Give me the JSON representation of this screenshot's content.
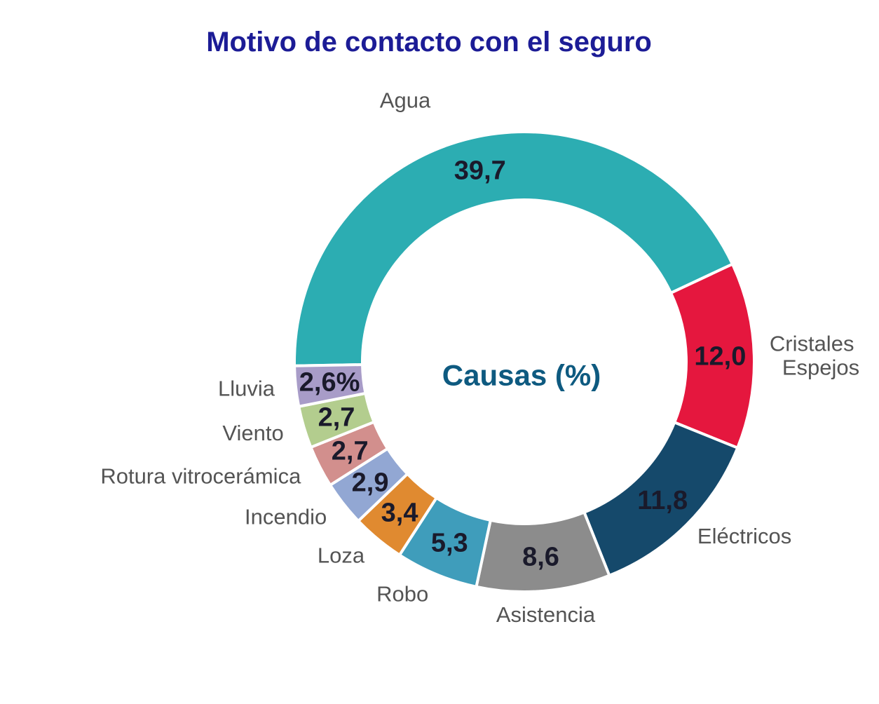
{
  "chart_data": {
    "type": "pie",
    "variant": "donut",
    "title": "Motivo de contacto con el seguro",
    "center_label": "Causas (%)",
    "unit": "%",
    "start_angle_deg": 181,
    "direction": "clockwise",
    "legend": "none",
    "slices": [
      {
        "label": "Agua",
        "value": 39.7,
        "value_label": "39,7",
        "color": "#2cadb2"
      },
      {
        "label": "Cristales Espejos",
        "value": 12.0,
        "value_label": "12,0",
        "color": "#e5173e",
        "label_lines": [
          "Cristales",
          "Espejos"
        ]
      },
      {
        "label": "Eléctricos",
        "value": 11.8,
        "value_label": "11,8",
        "color": "#15496b"
      },
      {
        "label": "Asistencia",
        "value": 8.6,
        "value_label": "8,6",
        "color": "#8c8c8c"
      },
      {
        "label": "Robo",
        "value": 5.3,
        "value_label": "5,3",
        "color": "#3f9dbb"
      },
      {
        "label": "Loza",
        "value": 3.4,
        "value_label": "3,4",
        "color": "#e08a30"
      },
      {
        "label": "Incendio",
        "value": 2.9,
        "value_label": "2,9",
        "color": "#92a7d3"
      },
      {
        "label": "Rotura vitrocerámica",
        "value": 2.7,
        "value_label": "2,7",
        "color": "#d28f8d"
      },
      {
        "label": "Viento",
        "value": 2.7,
        "value_label": "2,7",
        "color": "#b3cd8e"
      },
      {
        "label": "Lluvia",
        "value": 2.6,
        "value_label": "2,6%",
        "color": "#a89cc8"
      }
    ],
    "colors": {
      "title": "#1c1c96",
      "center_label": "#0e5a80",
      "category_labels": "#545454",
      "value_labels": "#1a1a2b",
      "separator": "#ffffff",
      "background": "#ffffff"
    }
  }
}
